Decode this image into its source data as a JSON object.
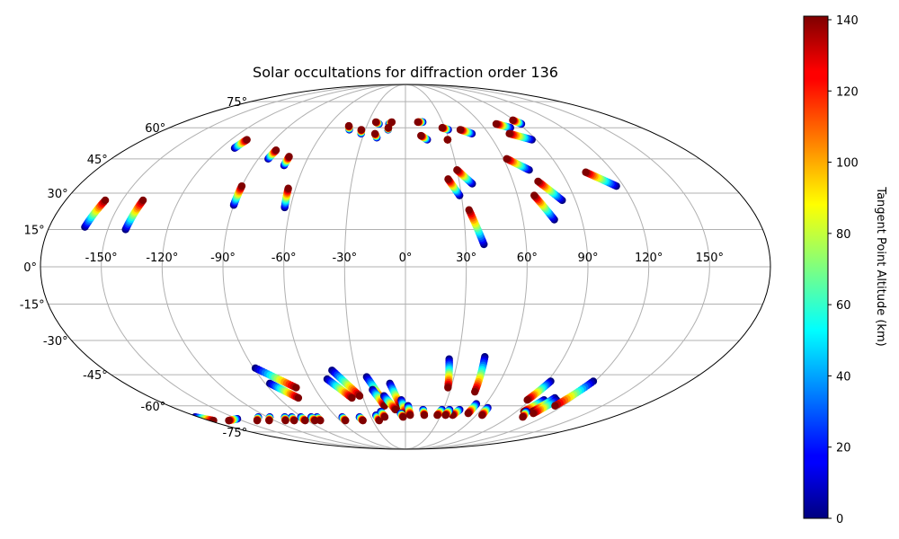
{
  "chart_data": {
    "type": "scatter",
    "projection": "mollweide",
    "title": "Solar occultations for diffraction order 136",
    "colorbar": {
      "label": "Tangent Point Altitude (km)",
      "colormap": "jet",
      "range": [
        0,
        141
      ],
      "ticks": [
        "0",
        "20",
        "40",
        "60",
        "80",
        "100",
        "120",
        "140"
      ],
      "tick_values": [
        0,
        20,
        40,
        60,
        80,
        100,
        120,
        140
      ]
    },
    "grid": true,
    "lon_ticks": [
      {
        "value": -150,
        "label": "-150°"
      },
      {
        "value": -120,
        "label": "-120°"
      },
      {
        "value": -90,
        "label": "-90°"
      },
      {
        "value": -60,
        "label": "-60°"
      },
      {
        "value": -30,
        "label": "-30°"
      },
      {
        "value": 0,
        "label": "0°"
      },
      {
        "value": 30,
        "label": "30°"
      },
      {
        "value": 60,
        "label": "60°"
      },
      {
        "value": 90,
        "label": "90°"
      },
      {
        "value": 120,
        "label": "120°"
      },
      {
        "value": 150,
        "label": "150°"
      }
    ],
    "lat_ticks": [
      {
        "value": 75,
        "label": "75°"
      },
      {
        "value": 60,
        "label": "60°"
      },
      {
        "value": 45,
        "label": "45°"
      },
      {
        "value": 30,
        "label": "30°"
      },
      {
        "value": 15,
        "label": "15°"
      },
      {
        "value": 0,
        "label": "0°"
      },
      {
        "value": -15,
        "label": "-15°"
      },
      {
        "value": -30,
        "label": "-30°"
      },
      {
        "value": -45,
        "label": "-45°"
      },
      {
        "value": -60,
        "label": "-60°"
      },
      {
        "value": -75,
        "label": "-75°"
      }
    ],
    "tracks": [
      {
        "start": [
          -162,
          16
        ],
        "end": [
          -159,
          27
        ]
      },
      {
        "start": [
          -141,
          15
        ],
        "end": [
          -139,
          27
        ]
      },
      {
        "start": [
          -111,
          50
        ],
        "end": [
          -109,
          54
        ]
      },
      {
        "start": [
          -90,
          25
        ],
        "end": [
          -90,
          33
        ]
      },
      {
        "start": [
          -84,
          45
        ],
        "end": [
          -83,
          49
        ]
      },
      {
        "start": [
          -72,
          42
        ],
        "end": [
          -72,
          46
        ]
      },
      {
        "start": [
          -63,
          24
        ],
        "end": [
          -64,
          32
        ]
      },
      {
        "start": [
          -42,
          59
        ],
        "end": [
          -44,
          61
        ]
      },
      {
        "start": [
          -32,
          57
        ],
        "end": [
          -33,
          59
        ]
      },
      {
        "start": [
          -21,
          62
        ],
        "end": [
          -24,
          63
        ]
      },
      {
        "start": [
          -20,
          55
        ],
        "end": [
          -22,
          57
        ]
      },
      {
        "start": [
          -13,
          62
        ],
        "end": [
          -11,
          63
        ]
      },
      {
        "start": [
          -13,
          59
        ],
        "end": [
          -13,
          60
        ]
      },
      {
        "start": [
          14,
          63
        ],
        "end": [
          10,
          63
        ]
      },
      {
        "start": [
          15,
          54
        ],
        "end": [
          11,
          56
        ]
      },
      {
        "start": [
          32,
          59
        ],
        "end": [
          28,
          60
        ]
      },
      {
        "start": [
          29,
          54
        ],
        "end": [
          29,
          54
        ]
      },
      {
        "start": [
          48,
          57
        ],
        "end": [
          41,
          59
        ]
      },
      {
        "start": [
          29,
          29
        ],
        "end": [
          24,
          36
        ]
      },
      {
        "start": [
          37,
          34
        ],
        "end": [
          30,
          40
        ]
      },
      {
        "start": [
          39,
          9
        ],
        "end": [
          33,
          23
        ]
      },
      {
        "start": [
          80,
          60
        ],
        "end": [
          72,
          62
        ]
      },
      {
        "start": [
          87,
          54
        ],
        "end": [
          75,
          57
        ]
      },
      {
        "start": [
          92,
          62
        ],
        "end": [
          89,
          64
        ]
      },
      {
        "start": [
          72,
          40
        ],
        "end": [
          62,
          45
        ]
      },
      {
        "start": [
          83,
          27
        ],
        "end": [
          74,
          35
        ]
      },
      {
        "start": [
          76,
          19
        ],
        "end": [
          69,
          29
        ]
      },
      {
        "start": [
          116,
          33
        ],
        "end": [
          104,
          39
        ]
      },
      {
        "start": [
          -89,
          -42
        ],
        "end": [
          -72,
          -51
        ]
      },
      {
        "start": [
          -87,
          -49
        ],
        "end": [
          -76,
          -56
        ]
      },
      {
        "start": [
          -44,
          -43
        ],
        "end": [
          -32,
          -55
        ]
      },
      {
        "start": [
          -49,
          -47
        ],
        "end": [
          -38,
          -56
        ]
      },
      {
        "start": [
          -24,
          -46
        ],
        "end": [
          -16,
          -58
        ]
      },
      {
        "start": [
          -22,
          -52
        ],
        "end": [
          -16,
          -60
        ]
      },
      {
        "start": [
          -10,
          -49
        ],
        "end": [
          -4,
          -60
        ]
      },
      {
        "start": [
          -15,
          -55
        ],
        "end": [
          -8,
          -62
        ]
      },
      {
        "start": [
          -3,
          -57
        ],
        "end": [
          0,
          -64
        ]
      },
      {
        "start": [
          2,
          -60
        ],
        "end": [
          4,
          -65
        ]
      },
      {
        "start": [
          25,
          -38
        ],
        "end": [
          28,
          -51
        ]
      },
      {
        "start": [
          45,
          -37
        ],
        "end": [
          47,
          -53
        ]
      },
      {
        "start": [
          53,
          -59
        ],
        "end": [
          52,
          -64
        ]
      },
      {
        "start": [
          64,
          -61
        ],
        "end": [
          65,
          -65
        ]
      },
      {
        "start": [
          92,
          -48
        ],
        "end": [
          88,
          -57
        ]
      },
      {
        "start": [
          100,
          -57
        ],
        "end": [
          96,
          -63
        ]
      },
      {
        "start": [
          106,
          -56
        ],
        "end": [
          103,
          -63
        ]
      },
      {
        "start": [
          109,
          -57
        ],
        "end": [
          106,
          -64
        ]
      },
      {
        "start": [
          119,
          -48
        ],
        "end": [
          114,
          -60
        ]
      },
      {
        "start": [
          29,
          -62
        ],
        "end": [
          27,
          -65
        ]
      },
      {
        "start": [
          43,
          -62
        ],
        "end": [
          40,
          -65
        ]
      },
      {
        "start": [
          35,
          -62
        ],
        "end": [
          34,
          -65
        ]
      },
      {
        "start": [
          14,
          -62
        ],
        "end": [
          16,
          -65
        ]
      },
      {
        "start": [
          -25,
          -65
        ],
        "end": [
          -24,
          -68
        ]
      },
      {
        "start": [
          -40,
          -66
        ],
        "end": [
          -39,
          -68
        ]
      },
      {
        "start": [
          -55,
          -66
        ],
        "end": [
          -55,
          -68
        ]
      },
      {
        "start": [
          -77,
          -66
        ],
        "end": [
          -78,
          -68
        ]
      },
      {
        "start": [
          -82,
          -66
        ],
        "end": [
          -83,
          -68
        ]
      },
      {
        "start": [
          -91,
          -66
        ],
        "end": [
          -92,
          -68
        ]
      },
      {
        "start": [
          -99,
          -66
        ],
        "end": [
          -102,
          -68
        ]
      },
      {
        "start": [
          -105,
          -66
        ],
        "end": [
          -110,
          -68
        ]
      },
      {
        "start": [
          -118,
          -66
        ],
        "end": [
          -125,
          -68
        ]
      },
      {
        "start": [
          -128,
          -66
        ],
        "end": [
          -136,
          -68
        ]
      },
      {
        "start": [
          -150,
          -67
        ],
        "end": [
          -162,
          -68
        ]
      },
      {
        "start": [
          -183,
          -66
        ],
        "end": [
          -176,
          -68
        ]
      },
      {
        "start": [
          98,
          -63
        ],
        "end": [
          102,
          -66
        ]
      },
      {
        "start": [
          -20,
          -63
        ],
        "end": [
          -18,
          -66
        ]
      },
      {
        "start": [
          -4,
          -64
        ],
        "end": [
          -2,
          -66
        ]
      }
    ]
  }
}
